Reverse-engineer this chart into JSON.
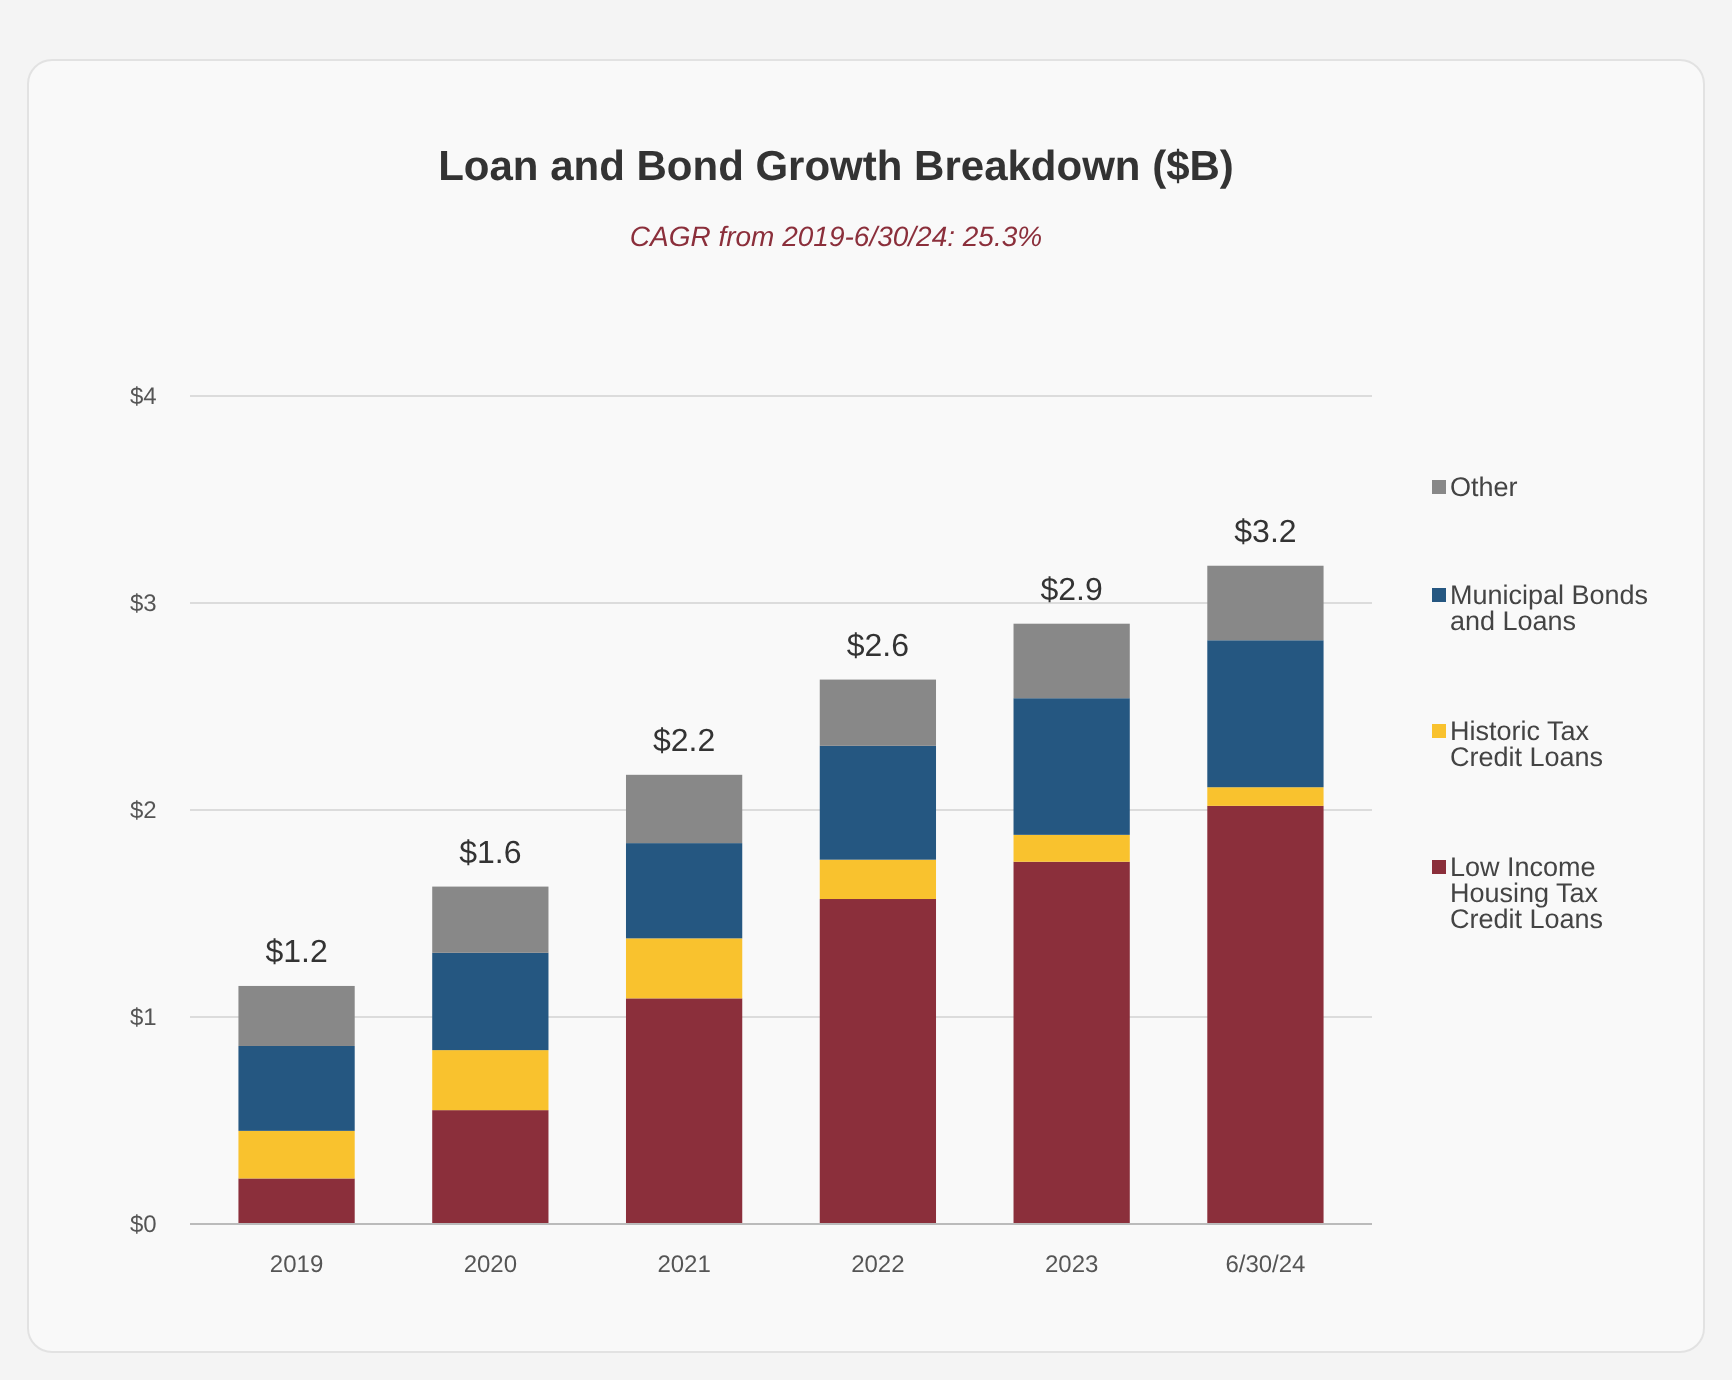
{
  "chart_data": {
    "type": "bar",
    "title": "Loan and Bond Growth Breakdown ($B)",
    "subtitle": "CAGR from 2019-6/30/24: 25.3%",
    "categories": [
      "2019",
      "2020",
      "2021",
      "2022",
      "2023",
      "6/30/24"
    ],
    "series": [
      {
        "name": "Low Income Housing Tax Credit Loans",
        "color": "#8b2f3b",
        "values": [
          0.22,
          0.55,
          1.09,
          1.57,
          1.75,
          2.02
        ]
      },
      {
        "name": "Historic Tax Credit Loans",
        "color": "#f9c22e",
        "values": [
          0.23,
          0.29,
          0.29,
          0.19,
          0.13,
          0.09
        ]
      },
      {
        "name": "Municipal Bonds and Loans",
        "color": "#255781",
        "values": [
          0.41,
          0.47,
          0.46,
          0.55,
          0.66,
          0.71
        ]
      },
      {
        "name": "Other",
        "color": "#888888",
        "values": [
          0.29,
          0.32,
          0.33,
          0.32,
          0.36,
          0.36
        ]
      }
    ],
    "stacked": true,
    "totals": [
      "$1.2",
      "$1.6",
      "$2.2",
      "$2.6",
      "$2.9",
      "$3.2"
    ],
    "ylim": [
      0,
      4
    ],
    "yticks": [
      {
        "value": 0,
        "label": "$0"
      },
      {
        "value": 1,
        "label": "$1"
      },
      {
        "value": 2,
        "label": "$2"
      },
      {
        "value": 3,
        "label": "$3"
      },
      {
        "value": 4,
        "label": "$4"
      }
    ],
    "grid": "y",
    "legend": "right"
  }
}
